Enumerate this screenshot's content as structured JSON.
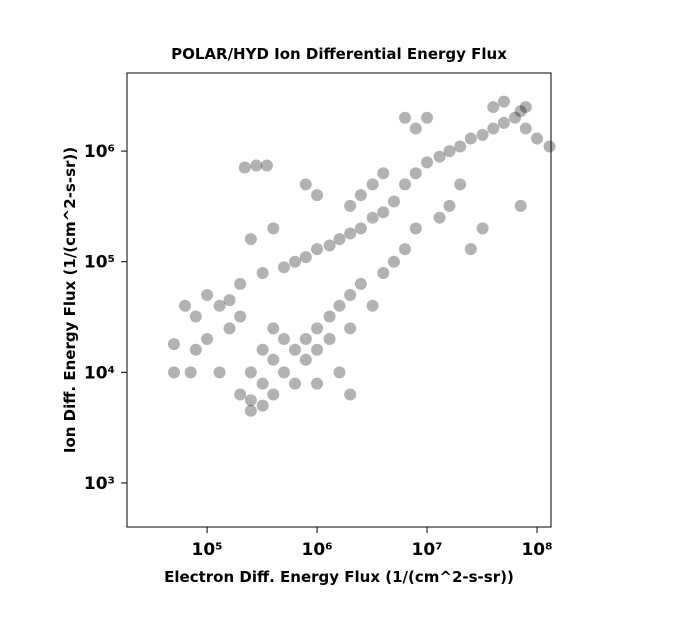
{
  "chart_data": {
    "type": "scatter",
    "title": "POLAR/HYD  Ion Differential Energy Flux",
    "x_label": "Electron Diff. Energy Flux (1/(cm^2-s-sr))",
    "y_label": "Ion Diff. Energy Flux (1/(cm^2-s-sr))",
    "x_scale": "log",
    "y_scale": "log",
    "xlim": [
      18700,
      134000000
    ],
    "ylim": [
      400,
      5080000
    ],
    "xticks": [
      {
        "value": 100000,
        "label": "10⁵"
      },
      {
        "value": 1000000,
        "label": "10⁶"
      },
      {
        "value": 10000000,
        "label": "10⁷"
      },
      {
        "value": 100000000,
        "label": "10⁸"
      }
    ],
    "yticks": [
      {
        "value": 1000,
        "label": "10³"
      },
      {
        "value": 10000,
        "label": "10⁴"
      },
      {
        "value": 100000,
        "label": "10⁵"
      },
      {
        "value": 1000000,
        "label": "10⁶"
      }
    ],
    "color": "#000000",
    "opacity": 0.3,
    "x": [
      500000.0,
      630000.0,
      790000.0,
      1000000.0,
      1300000.0,
      1600000.0,
      2000000.0,
      2500000.0,
      3200000.0,
      4000000.0,
      5000000.0,
      6300000.0,
      7900000.0,
      10000000.0,
      13000000.0,
      16000000.0,
      20000000.0,
      25000000.0,
      32000000.0,
      40000000.0,
      50000000.0,
      63000000.0,
      71000000.0,
      79000000.0,
      200000.0,
      250000.0,
      320000.0,
      400000.0,
      320000.0,
      250000.0,
      400000.0,
      500000.0,
      630000.0,
      790000.0,
      1000000.0,
      1300000.0,
      1000000.0,
      790000.0,
      1600000.0,
      2000000.0,
      1300000.0,
      500000.0,
      630000.0,
      1000000.0,
      1600000.0,
      320000.0,
      400000.0,
      2500000.0,
      3200000.0,
      4000000.0,
      5000000.0,
      6300000.0,
      2000000.0,
      200000.0,
      250000.0,
      63000.0,
      79000.0,
      100000.0,
      130000.0,
      160000.0,
      100000.0,
      79000.0,
      130000.0,
      200000.0,
      320000.0,
      71000.0,
      50000.0,
      50000.0,
      160000.0,
      250000.0,
      400000.0,
      220000.0,
      280000.0,
      350000.0,
      790000.0,
      1000000.0,
      2500000.0,
      3200000.0,
      4000000.0,
      2000000.0,
      10000000.0,
      7900000.0,
      79000000.0,
      100000000.0,
      130000000.0,
      71000000.0,
      25000000.0,
      32000000.0,
      2000000.0,
      16000000.0,
      6300000.0,
      40000000.0,
      50000000.0,
      20000000.0,
      13000000.0,
      7900000.0
    ],
    "y": [
      89000.0,
      100000.0,
      110000.0,
      130000.0,
      140000.0,
      160000.0,
      180000.0,
      200000.0,
      250000.0,
      280000.0,
      350000.0,
      500000.0,
      630000.0,
      790000.0,
      890000.0,
      1000000.0,
      1100000.0,
      1300000.0,
      1400000.0,
      1600000.0,
      1800000.0,
      2000000.0,
      2300000.0,
      2500000.0,
      6300.0,
      5600.0,
      5000.0,
      6300.0,
      7900.0,
      10000.0,
      13000.0,
      10000.0,
      16000.0,
      20000.0,
      25000.0,
      32000.0,
      16000.0,
      13000.0,
      40000.0,
      50000.0,
      20000.0,
      20000.0,
      7900.0,
      7900.0,
      10000.0,
      16000.0,
      25000.0,
      63000.0,
      40000.0,
      79000.0,
      100000.0,
      130000.0,
      25000.0,
      32000.0,
      4500.0,
      40000.0,
      32000.0,
      50000.0,
      40000.0,
      45000.0,
      20000.0,
      16000.0,
      10000.0,
      63000.0,
      79000.0,
      10000.0,
      10000.0,
      18000.0,
      25000.0,
      160000.0,
      200000.0,
      710000.0,
      740000.0,
      740000.0,
      500000.0,
      400000.0,
      400000.0,
      500000.0,
      630000.0,
      320000.0,
      2000000.0,
      1600000.0,
      1600000.0,
      1300000.0,
      1100000.0,
      320000.0,
      130000.0,
      200000.0,
      6300.0,
      320000.0,
      2000000.0,
      2500000.0,
      2800000.0,
      500000.0,
      250000.0,
      200000.0
    ]
  }
}
